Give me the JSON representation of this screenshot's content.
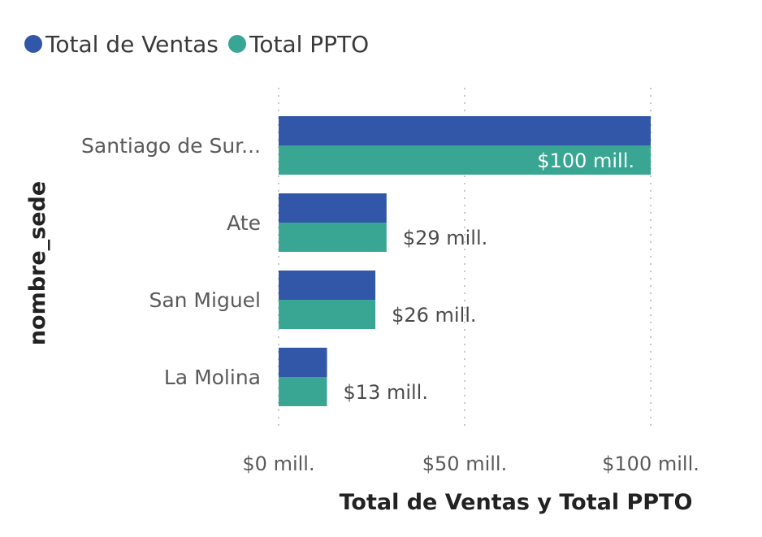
{
  "chart_data": {
    "type": "bar",
    "orientation": "horizontal",
    "categories": [
      "Santiago de Sur...",
      "Ate",
      "San Miguel",
      "La Molina"
    ],
    "series": [
      {
        "name": "Total de Ventas",
        "color": "#3256A8",
        "values": [
          100,
          29,
          26,
          13
        ]
      },
      {
        "name": "Total PPTO",
        "color": "#38A693",
        "values": [
          100,
          29,
          26,
          13
        ]
      }
    ],
    "data_labels": [
      "$100 mill.",
      "$29 mill.",
      "$26 mill.",
      "$13 mill."
    ],
    "x_ticks": [
      {
        "value": 0,
        "label": "$0 mill."
      },
      {
        "value": 50,
        "label": "$50 mill."
      },
      {
        "value": 100,
        "label": "$100 mill."
      }
    ],
    "xlim": [
      0,
      100
    ],
    "xlabel": "Total de Ventas y Total PPTO",
    "ylabel": "nombre_sede",
    "grid": true,
    "legend_position": "top-left"
  }
}
